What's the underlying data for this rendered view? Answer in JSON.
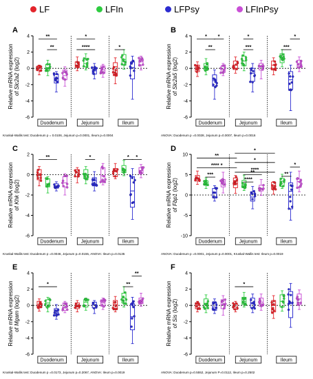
{
  "legend": {
    "items": [
      {
        "label": "LF",
        "color": "#e3242b"
      },
      {
        "label": "LFIn",
        "color": "#2ecc40"
      },
      {
        "label": "LFPsy",
        "color": "#2c2cd0"
      },
      {
        "label": "LFInPsy",
        "color": "#c94fd6"
      }
    ]
  },
  "sections": [
    "Duodenum",
    "Jejunum",
    "Ileum"
  ],
  "colors": {
    "LF": "#e3242b",
    "LFIn": "#2ecc40",
    "LFPsy": "#2c2cd0",
    "LFInPsy": "#c94fd6"
  },
  "chart_data": [
    {
      "panel": "A",
      "type": "box",
      "ylabel_line1": "Relative mRNA expression",
      "ylabel_line2_prefix": "of ",
      "gene": "Slc2a2",
      "ylabel_line2_suffix": " (log2)",
      "ylim": [
        -6,
        4
      ],
      "yticks": [
        -6,
        -4,
        -2,
        0,
        2,
        4
      ],
      "groups": [
        "LF",
        "LFIn",
        "LFPsy",
        "LFInPsy"
      ],
      "medians": [
        [
          0.0,
          0.1,
          -1.2,
          -0.9
        ],
        [
          0.4,
          0.6,
          -0.3,
          -0.2
        ],
        [
          0.2,
          1.1,
          0.1,
          0.8
        ]
      ],
      "boxes": [
        [
          [
            -0.3,
            0.3
          ],
          [
            -0.3,
            0.5
          ],
          [
            -1.8,
            -0.7
          ],
          [
            -1.4,
            -0.2
          ]
        ],
        [
          [
            0.1,
            0.8
          ],
          [
            0.2,
            1.2
          ],
          [
            -0.7,
            0.1
          ],
          [
            -0.6,
            0.3
          ]
        ],
        [
          [
            -0.9,
            0.7
          ],
          [
            0.4,
            1.7
          ],
          [
            -1.3,
            0.8
          ],
          [
            0.4,
            1.2
          ]
        ]
      ],
      "whiskers": [
        [
          [
            -0.8,
            0.4
          ],
          [
            -0.9,
            1.0
          ],
          [
            -2.9,
            -0.4
          ],
          [
            -2.2,
            0.2
          ]
        ],
        [
          [
            -0.3,
            1.4
          ],
          [
            -0.2,
            1.8
          ],
          [
            -1.3,
            0.6
          ],
          [
            -1.1,
            0.5
          ]
        ],
        [
          [
            -1.9,
            1.3
          ],
          [
            -0.1,
            2.3
          ],
          [
            -3.8,
            1.5
          ],
          [
            -0.2,
            1.5
          ]
        ]
      ],
      "sig": [
        {
          "section": 0,
          "from": 0,
          "to": 2,
          "level": 3.6,
          "label": "**"
        },
        {
          "section": 0,
          "from": 1,
          "to": 2,
          "level": 2.3,
          "label": "**"
        },
        {
          "section": 1,
          "from": 0,
          "to": 2,
          "level": 3.6,
          "label": "*"
        },
        {
          "section": 1,
          "from": 0,
          "to": 2,
          "level": 2.3,
          "label": "****"
        },
        {
          "section": 2,
          "from": 0,
          "to": 1,
          "level": 2.3,
          "label": "*"
        }
      ],
      "stats": "Kruskal-Wallis test: Duodenum p = 0.0106, Jejunum p=0.0001, Ileum p=0.0004"
    },
    {
      "panel": "B",
      "type": "box",
      "ylabel_line1": "Relative mRNA expression",
      "ylabel_line2_prefix": "of ",
      "gene": "Slc2a5",
      "ylabel_line2_suffix": " (log2)",
      "ylim": [
        -6,
        4
      ],
      "yticks": [
        -6,
        -4,
        -2,
        0,
        2,
        4
      ],
      "groups": [
        "LF",
        "LFIn",
        "LFPsy",
        "LFInPsy"
      ],
      "medians": [
        [
          0.1,
          0.2,
          -1.5,
          -0.1
        ],
        [
          0.4,
          0.9,
          -0.6,
          0.2
        ],
        [
          0.4,
          1.3,
          -1.4,
          0.6
        ]
      ],
      "boxes": [
        [
          [
            -0.4,
            0.4
          ],
          [
            -0.2,
            0.6
          ],
          [
            -2.2,
            -0.8
          ],
          [
            -0.5,
            0.3
          ]
        ],
        [
          [
            0.0,
            0.9
          ],
          [
            0.3,
            1.5
          ],
          [
            -1.6,
            0.0
          ],
          [
            -0.2,
            0.6
          ]
        ],
        [
          [
            -0.2,
            0.9
          ],
          [
            0.7,
            1.8
          ],
          [
            -2.6,
            -0.4
          ],
          [
            0.1,
            1.0
          ]
        ]
      ],
      "whiskers": [
        [
          [
            -1.0,
            0.8
          ],
          [
            -0.8,
            1.2
          ],
          [
            -3.8,
            -0.2
          ],
          [
            -0.9,
            0.6
          ]
        ],
        [
          [
            -0.6,
            1.4
          ],
          [
            -0.3,
            2.0
          ],
          [
            -2.9,
            0.6
          ],
          [
            -1.3,
            1.0
          ]
        ],
        [
          [
            -0.8,
            1.3
          ],
          [
            0.2,
            2.3
          ],
          [
            -5.2,
            0.4
          ],
          [
            -0.4,
            1.4
          ]
        ]
      ],
      "sig": [
        {
          "section": 0,
          "from": 0,
          "to": 2,
          "level": 3.6,
          "label": "*"
        },
        {
          "section": 0,
          "from": 2,
          "to": 3,
          "level": 3.6,
          "label": "*"
        },
        {
          "section": 0,
          "from": 1,
          "to": 2,
          "level": 2.3,
          "label": "**"
        },
        {
          "section": 1,
          "from": 1,
          "to": 2,
          "level": 3.6,
          "label": "*"
        },
        {
          "section": 1,
          "from": 1,
          "to": 2,
          "level": 2.3,
          "label": "***"
        },
        {
          "section": 2,
          "from": 2,
          "to": 3,
          "level": 3.6,
          "label": "*"
        },
        {
          "section": 2,
          "from": 1,
          "to": 2,
          "level": 2.3,
          "label": "***"
        }
      ],
      "stats": "ANOVA: Duodenum p =0.0028, Jejunum p=0.0007, Ileum p=0.0016"
    },
    {
      "panel": "C",
      "type": "box",
      "ylabel_line1": "Relative mRNA expression",
      "ylabel_line2_prefix": "of ",
      "gene": "Khk",
      "ylabel_line2_suffix": " (log2)",
      "ylim": [
        -6,
        2
      ],
      "yticks": [
        -6,
        -4,
        -2,
        0,
        2
      ],
      "groups": [
        "LF",
        "LFIn",
        "LFPsy",
        "LFInPsy"
      ],
      "medians": [
        [
          0.1,
          -0.9,
          -1.1,
          -0.8
        ],
        [
          0.2,
          0.0,
          -0.6,
          -0.1
        ],
        [
          0.3,
          0.5,
          -1.6,
          0.4
        ]
      ],
      "boxes": [
        [
          [
            -0.5,
            0.5
          ],
          [
            -1.2,
            -0.4
          ],
          [
            -1.3,
            -0.9
          ],
          [
            -1.2,
            -0.2
          ]
        ],
        [
          [
            -0.2,
            0.5
          ],
          [
            -0.4,
            0.5
          ],
          [
            -1.1,
            -0.3
          ],
          [
            -0.6,
            0.7
          ]
        ],
        [
          [
            -0.2,
            0.6
          ],
          [
            0.2,
            0.9
          ],
          [
            -3.2,
            -0.2
          ],
          [
            0.1,
            0.7
          ]
        ]
      ],
      "whiskers": [
        [
          [
            -1.1,
            0.8
          ],
          [
            -1.8,
            -0.2
          ],
          [
            -1.6,
            -0.7
          ],
          [
            -2.0,
            0.1
          ]
        ],
        [
          [
            -0.8,
            0.7
          ],
          [
            -0.9,
            0.8
          ],
          [
            -1.6,
            0.3
          ],
          [
            -1.0,
            1.1
          ]
        ],
        [
          [
            -0.4,
            1.1
          ],
          [
            -0.1,
            1.4
          ],
          [
            -4.4,
            0.6
          ],
          [
            -0.3,
            1.0
          ]
        ]
      ],
      "sig": [
        {
          "section": 0,
          "from": 0,
          "to": 2,
          "level": 1.5,
          "label": "**"
        },
        {
          "section": 1,
          "from": 1,
          "to": 2,
          "level": 1.5,
          "label": "*"
        },
        {
          "section": 2,
          "from": 1,
          "to": 2,
          "level": 1.5,
          "label": "*"
        },
        {
          "section": 2,
          "from": 2,
          "to": 3,
          "level": 1.5,
          "label": "*"
        }
      ],
      "stats": "Kruskal-Wallis test: Duodenum p =0.0046, Jejunum p=0.0155, ANOVA: Ileum p=0.0135"
    },
    {
      "panel": "D",
      "type": "box",
      "ylabel_line1": "Relative mRNA expression",
      "ylabel_line2_prefix": "of ",
      "gene": "Fbp1",
      "ylabel_line2_suffix": " (log2)",
      "ylim": [
        -10,
        10
      ],
      "yticks": [
        -10,
        -5,
        0,
        5,
        10
      ],
      "groups": [
        "LF",
        "LFIn",
        "LFPsy",
        "LFInPsy"
      ],
      "medians": [
        [
          4.2,
          3.0,
          0.5,
          3.1
        ],
        [
          2.8,
          2.6,
          -0.5,
          1.6
        ],
        [
          2.4,
          3.4,
          0.9,
          3.3
        ]
      ],
      "boxes": [
        [
          [
            3.5,
            4.8
          ],
          [
            2.4,
            3.5
          ],
          [
            -0.7,
            1.6
          ],
          [
            2.0,
            3.8
          ]
        ],
        [
          [
            1.8,
            4.2
          ],
          [
            1.8,
            3.6
          ],
          [
            -1.5,
            0.8
          ],
          [
            1.0,
            2.4
          ]
        ],
        [
          [
            1.4,
            3.1
          ],
          [
            2.1,
            4.1
          ],
          [
            -3.4,
            3.0
          ],
          [
            1.9,
            3.9
          ]
        ]
      ],
      "whiskers": [
        [
          [
            2.6,
            5.9
          ],
          [
            1.6,
            4.2
          ],
          [
            -1.5,
            2.3
          ],
          [
            0.5,
            5.6
          ]
        ],
        [
          [
            0.4,
            4.8
          ],
          [
            1.1,
            4.9
          ],
          [
            -3.4,
            2.1
          ],
          [
            -0.1,
            3.8
          ]
        ],
        [
          [
            0.2,
            3.3
          ],
          [
            1.6,
            5.1
          ],
          [
            -6.2,
            5.6
          ],
          [
            0.8,
            5.9
          ]
        ]
      ],
      "sig": [
        {
          "section": 0,
          "from": 0,
          "to": 3,
          "level": 9.1,
          "label": "**",
          "extend_to_section": 1
        },
        {
          "section": 0,
          "from": 0,
          "to": 3,
          "level": 6.7,
          "label": "**** *",
          "extend_to_section": 1
        },
        {
          "section": 0,
          "from": 1,
          "to": 2,
          "level": 4.4,
          "label": "***"
        },
        {
          "section": 1,
          "from": 0,
          "to": 3,
          "level": 10.3,
          "label": "*",
          "extend_to_section": 2
        },
        {
          "section": 1,
          "from": 0,
          "to": 3,
          "level": 8.0,
          "label": "*",
          "extend_to_section": 2
        },
        {
          "section": 1,
          "from": 0,
          "to": 3,
          "level": 5.6,
          "label": "****",
          "extend_to_section": 2
        },
        {
          "section": 1,
          "from": 1,
          "to": 3,
          "level": 5.0,
          "label": "**"
        },
        {
          "section": 1,
          "from": 1,
          "to": 2,
          "level": 3.2,
          "label": "****"
        },
        {
          "section": 2,
          "from": 2,
          "to": 3,
          "level": 6.9,
          "label": "*"
        },
        {
          "section": 2,
          "from": 1,
          "to": 2,
          "level": 4.6,
          "label": "**"
        }
      ],
      "stats": "ANOVA: Duodenum p =0.0001, Jejunum p=0.0001, Kruskal-Wallis test: Ileum p=0.0019"
    },
    {
      "panel": "E",
      "type": "box",
      "ylabel_line1": "Relative mRNA expression",
      "ylabel_line2_prefix": "of ",
      "gene": "Mgam",
      "ylabel_line2_suffix": " (log2)",
      "ylim": [
        -6,
        4
      ],
      "yticks": [
        -6,
        -4,
        -2,
        0,
        2,
        4
      ],
      "groups": [
        "LF",
        "LFIn",
        "LFPsy",
        "LFInPsy"
      ],
      "medians": [
        [
          0.1,
          0.3,
          -0.9,
          -0.2
        ],
        [
          0.0,
          0.4,
          0.1,
          0.3
        ],
        [
          0.1,
          0.9,
          -1.4,
          0.4
        ]
      ],
      "boxes": [
        [
          [
            -0.3,
            0.5
          ],
          [
            -0.2,
            0.7
          ],
          [
            -1.2,
            -0.4
          ],
          [
            -0.6,
            0.3
          ]
        ],
        [
          [
            -0.4,
            0.3
          ],
          [
            -0.2,
            0.7
          ],
          [
            -0.3,
            0.4
          ],
          [
            -0.1,
            0.7
          ]
        ],
        [
          [
            -0.4,
            0.6
          ],
          [
            0.3,
            1.5
          ],
          [
            -3.0,
            0.2
          ],
          [
            0.2,
            0.9
          ]
        ]
      ],
      "whiskers": [
        [
          [
            -0.7,
            0.8
          ],
          [
            -0.8,
            1.0
          ],
          [
            -1.7,
            0.1
          ],
          [
            -0.9,
            0.5
          ]
        ],
        [
          [
            -0.8,
            0.6
          ],
          [
            -0.6,
            0.9
          ],
          [
            -1.0,
            0.6
          ],
          [
            -0.5,
            0.9
          ]
        ],
        [
          [
            -0.8,
            1.1
          ],
          [
            -0.2,
            2.3
          ],
          [
            -4.7,
            1.0
          ],
          [
            -0.1,
            1.5
          ]
        ]
      ],
      "sig": [
        {
          "section": 0,
          "from": 0,
          "to": 2,
          "level": 2.3,
          "label": "*"
        },
        {
          "section": 2,
          "from": 2,
          "to": 3,
          "level": 3.6,
          "label": "**"
        },
        {
          "section": 2,
          "from": 1,
          "to": 2,
          "level": 2.3,
          "label": "**"
        }
      ],
      "stats": "Kruskal-Wallis test: Duodenum p =0.0173, Jejunum p=0.2067, ANOVA: Ileum p=0.0019"
    },
    {
      "panel": "F",
      "type": "box",
      "ylabel_line1": "Relative mRNA expression",
      "ylabel_line2_prefix": "of ",
      "gene": "Sis",
      "ylabel_line2_suffix": " (log2)",
      "ylim": [
        -6,
        4
      ],
      "yticks": [
        -6,
        -4,
        -2,
        0,
        2,
        4
      ],
      "groups": [
        "LF",
        "LFIn",
        "LFPsy",
        "LFInPsy"
      ],
      "medians": [
        [
          0.0,
          0.2,
          -0.2,
          0.1
        ],
        [
          -0.2,
          0.5,
          0.3,
          0.4
        ],
        [
          0.0,
          0.5,
          0.2,
          0.8
        ]
      ],
      "boxes": [
        [
          [
            -0.4,
            0.3
          ],
          [
            -0.3,
            0.8
          ],
          [
            -0.6,
            0.3
          ],
          [
            -0.4,
            0.7
          ]
        ],
        [
          [
            -0.5,
            0.2
          ],
          [
            0.1,
            1.0
          ],
          [
            -0.3,
            0.9
          ],
          [
            -0.1,
            0.9
          ]
        ],
        [
          [
            -0.8,
            0.6
          ],
          [
            -0.2,
            1.3
          ],
          [
            -1.5,
            1.7
          ],
          [
            0.1,
            1.4
          ]
        ]
      ],
      "whiskers": [
        [
          [
            -0.8,
            0.5
          ],
          [
            -0.9,
            1.3
          ],
          [
            -1.0,
            0.8
          ],
          [
            -1.2,
            1.2
          ]
        ],
        [
          [
            -0.8,
            0.5
          ],
          [
            -0.2,
            1.6
          ],
          [
            -0.9,
            1.4
          ],
          [
            -0.6,
            1.4
          ]
        ],
        [
          [
            -1.6,
            1.2
          ],
          [
            -0.7,
            1.8
          ],
          [
            -2.7,
            2.7
          ],
          [
            -0.5,
            1.9
          ]
        ]
      ],
      "sig": [
        {
          "section": 1,
          "from": 0,
          "to": 2,
          "level": 2.3,
          "label": "*"
        }
      ],
      "stats": "ANOVA: Duodenum p=0.5552, Jejunum P=0.0112, Ileum p=0.2502"
    }
  ]
}
